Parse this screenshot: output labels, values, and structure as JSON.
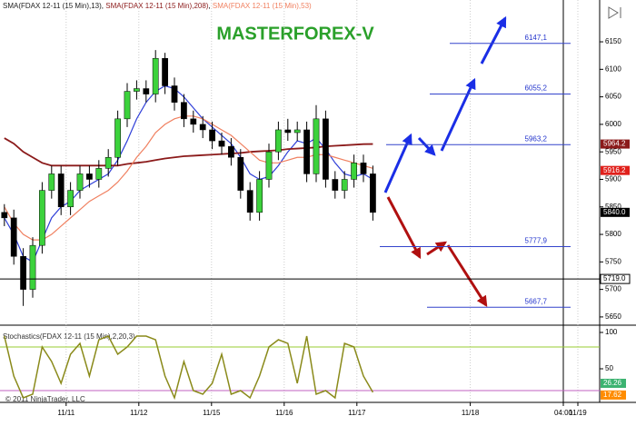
{
  "chart_data": {
    "type": "candlestick",
    "title": "MASTERFOREX-V",
    "x": [
      -0.85,
      -0.72,
      -0.59,
      -0.46,
      -0.33,
      -0.2,
      -0.07,
      0.06,
      0.19,
      0.32,
      0.45,
      0.58,
      0.71,
      0.84,
      0.97,
      1.1,
      1.23,
      1.36,
      1.49,
      1.62,
      1.75,
      1.88,
      2.01,
      2.14,
      2.27,
      2.4,
      2.53,
      2.66,
      2.79,
      2.92,
      3.05,
      3.18,
      3.31,
      3.44,
      3.57,
      3.7,
      3.83,
      3.96,
      4.09,
      4.22
    ],
    "open": [
      5840,
      5830,
      5760,
      5700,
      5780,
      5880,
      5910,
      5850,
      5880,
      5910,
      5900,
      5920,
      5940,
      6010,
      6060,
      6065,
      6055,
      6120,
      6070,
      6040,
      6010,
      6000,
      5990,
      5970,
      5960,
      5940,
      5880,
      5840,
      5900,
      5950,
      5990,
      5985,
      5990,
      5910,
      6010,
      5900,
      5880,
      5900,
      5930,
      5910
    ],
    "high": [
      5855,
      5845,
      5775,
      5795,
      5895,
      5925,
      5925,
      5895,
      5925,
      5925,
      5935,
      5955,
      6025,
      6075,
      6080,
      6080,
      6135,
      6130,
      6085,
      6055,
      6025,
      6015,
      6005,
      5985,
      5975,
      5955,
      5895,
      5915,
      5965,
      6005,
      6010,
      6005,
      6005,
      6035,
      6025,
      5915,
      5915,
      5945,
      5945,
      5925
    ],
    "low": [
      5815,
      5745,
      5670,
      5685,
      5765,
      5865,
      5835,
      5835,
      5865,
      5885,
      5885,
      5905,
      5925,
      5995,
      6045,
      6040,
      6040,
      6055,
      6025,
      5995,
      5985,
      5975,
      5955,
      5945,
      5925,
      5865,
      5825,
      5825,
      5885,
      5935,
      5970,
      5970,
      5895,
      5895,
      5885,
      5865,
      5865,
      5885,
      5895,
      5825
    ],
    "close": [
      5830,
      5760,
      5700,
      5780,
      5880,
      5910,
      5850,
      5880,
      5910,
      5900,
      5920,
      5940,
      6010,
      6060,
      6065,
      6055,
      6120,
      6070,
      6040,
      6010,
      6000,
      5990,
      5970,
      5960,
      5940,
      5880,
      5840,
      5900,
      5950,
      5990,
      5985,
      5990,
      5910,
      6010,
      5900,
      5880,
      5900,
      5930,
      5910,
      5840
    ],
    "up_color": "#3cd23c",
    "down_color": "#000000",
    "xlim": [
      -0.91,
      7.34
    ],
    "xticks": [
      {
        "value": 0,
        "label": "11/11"
      },
      {
        "value": 1,
        "label": "11/12"
      },
      {
        "value": 2,
        "label": "11/15"
      },
      {
        "value": 3,
        "label": "11/16"
      },
      {
        "value": 4,
        "label": "11/17"
      },
      {
        "value": 5.56,
        "label": "11/18"
      },
      {
        "value": 6.84,
        "label": "04:00",
        "line": true
      },
      {
        "value": 7.04,
        "label": "11/19"
      }
    ],
    "ylim": [
      5635,
      6226
    ],
    "yticks": [
      5650,
      5700,
      5750,
      5800,
      5850,
      5900,
      5950,
      6000,
      6050,
      6100,
      6150
    ],
    "indicators": [
      {
        "name": "SMA(FDAX 12-11 (15 Min),13)",
        "color": "#2f3fd8",
        "values": [
          5830,
          5800,
          5760,
          5750,
          5790,
          5830,
          5850,
          5860,
          5880,
          5890,
          5900,
          5910,
          5935,
          5970,
          6010,
          6040,
          6060,
          6070,
          6065,
          6050,
          6030,
          6010,
          5995,
          5980,
          5965,
          5940,
          5910,
          5900,
          5905,
          5925,
          5950,
          5970,
          5965,
          5975,
          5955,
          5930,
          5910,
          5905,
          5910,
          5900
        ]
      },
      {
        "name": "SMA(FDAX 12-11 (15 Min),208)",
        "color": "#8b1a1a",
        "values": [
          5975,
          5965,
          5950,
          5940,
          5930,
          5925,
          5925,
          5925,
          5925,
          5925,
          5925,
          5925,
          5925,
          5928,
          5930,
          5932,
          5935,
          5938,
          5940,
          5942,
          5943,
          5944,
          5945,
          5946,
          5947,
          5948,
          5950,
          5951,
          5952,
          5953,
          5955,
          5956,
          5957,
          5958,
          5960,
          5961,
          5962,
          5963,
          5964,
          5964.2
        ]
      },
      {
        "name": "SMA(FDAX 12-11 (15 Min),53)",
        "color": "#f08060",
        "values": [
          5850,
          5820,
          5800,
          5790,
          5790,
          5800,
          5815,
          5830,
          5845,
          5860,
          5870,
          5880,
          5895,
          5915,
          5940,
          5960,
          5985,
          6000,
          6010,
          6015,
          6015,
          6010,
          6000,
          5990,
          5980,
          5965,
          5950,
          5935,
          5930,
          5930,
          5935,
          5940,
          5940,
          5945,
          5945,
          5940,
          5935,
          5930,
          5925,
          5920
        ]
      }
    ],
    "price_markers": [
      {
        "value": 5964.2,
        "color": "#8b1a1a"
      },
      {
        "value": 5916.2,
        "color": "#e0201b"
      },
      {
        "value": {
          "value": 5840,
          "label": "5840.0"
        },
        "color": "#000000"
      },
      {
        "value": {
          "value": 5719,
          "label": "5719.0"
        },
        "color": "#ffffff",
        "line": true
      }
    ],
    "levels": [
      {
        "value": 6147.1,
        "label": "6147,1"
      },
      {
        "value": 6055.2,
        "label": "6055,2"
      },
      {
        "value": 5963.2,
        "label": "5963,2"
      },
      {
        "value": 5777.9,
        "label": "5777,9"
      },
      {
        "value": 5667.7,
        "label": "5667,7"
      }
    ],
    "stochastic": {
      "title": "Stochastics(FDAX 12-11 (15 Min),2,20,3)",
      "color": "#8a8a1a",
      "values": [
        95,
        40,
        10,
        15,
        80,
        60,
        30,
        70,
        85,
        40,
        90,
        95,
        70,
        80,
        95,
        95,
        90,
        40,
        10,
        60,
        20,
        15,
        30,
        70,
        15,
        20,
        10,
        40,
        80,
        90,
        85,
        30,
        95,
        15,
        20,
        10,
        85,
        80,
        40,
        17.62
      ],
      "ylim": [
        7.5,
        105
      ],
      "yticks": [
        50,
        100
      ],
      "levels": [
        {
          "value": 80,
          "color": "#9acd32"
        },
        {
          "value": 20,
          "color": "#c060c0"
        }
      ],
      "markers": [
        {
          "value": 26.26,
          "color": "#3cb371"
        },
        {
          "value": 17.62,
          "color": "#ff8c00"
        }
      ]
    },
    "copyright": "© 2011 NinjaTrader, LLC"
  }
}
